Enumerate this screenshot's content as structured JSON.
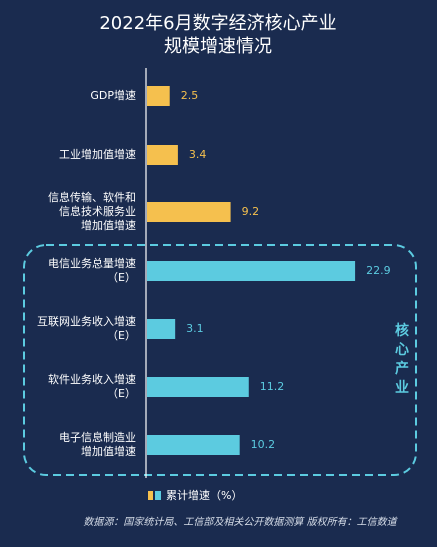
{
  "chart_data": {
    "type": "bar",
    "orientation": "horizontal",
    "title_lines": [
      "2022年6月数字经济核心产业",
      "规模增速情况"
    ],
    "categories": [
      [
        "GDP增速"
      ],
      [
        "工业增加值增速"
      ],
      [
        "信息传输、软件和",
        "信息技术服务业",
        "增加值增速"
      ],
      [
        "电信业务总量增速",
        "（E）"
      ],
      [
        "互联网业务收入增速",
        "（E）"
      ],
      [
        "软件业务收入增速",
        "（E）"
      ],
      [
        "电子信息制造业",
        "增加值增速"
      ]
    ],
    "values": [
      2.5,
      3.4,
      9.2,
      22.9,
      3.1,
      11.2,
      10.2
    ],
    "value_labels": [
      "2.5",
      "3.4",
      "9.2",
      "22.9",
      "3.1",
      "11.2",
      "10.2"
    ],
    "series_group": [
      "macro",
      "macro",
      "macro",
      "core",
      "core",
      "core",
      "core"
    ],
    "colors": {
      "macro": "#f5c04e",
      "core": "#5ccbe0",
      "background": "#1a2b4f",
      "text": "#ffffff"
    },
    "xlim": [
      0,
      25
    ],
    "grid": false,
    "group_box_label": "核心产业",
    "legend": {
      "label": "累计增速（%）",
      "position": "bottom-center"
    },
    "source_note": "数据源：国家统计局、工信部及相关公开数据测算 版权所有：工信数道"
  }
}
